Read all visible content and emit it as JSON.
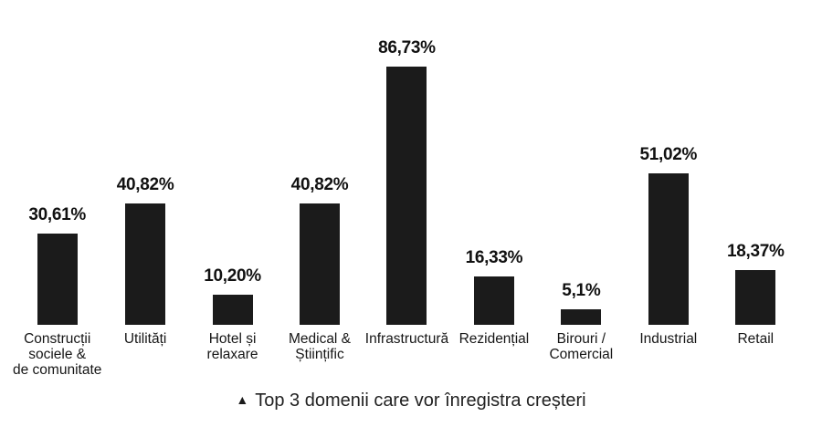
{
  "chart_data": {
    "type": "bar",
    "title": "",
    "xlabel": "",
    "ylabel": "",
    "ylim": [
      0,
      100
    ],
    "grid": false,
    "legend": "none",
    "bar_color": "#1b1b1b",
    "text_color": "#111111",
    "categories": [
      "Construcții sociale & de comunitate",
      "Utilități",
      "Hotel și relaxare",
      "Medical & Științific",
      "Infrastructură",
      "Rezidențial",
      "Birouri / Comercial",
      "Industrial",
      "Retail"
    ],
    "category_lines": [
      [
        "Construcții",
        "sociele &",
        "de comunitate"
      ],
      [
        "Utilități"
      ],
      [
        "Hotel și",
        "relaxare"
      ],
      [
        "Medical &",
        "Științific"
      ],
      [
        "Infrastructură"
      ],
      [
        "Rezidențial"
      ],
      [
        "Birouri /",
        "Comercial"
      ],
      [
        "Industrial"
      ],
      [
        "Retail"
      ]
    ],
    "values": [
      30.61,
      40.82,
      10.2,
      40.82,
      86.73,
      16.33,
      5.1,
      51.02,
      18.37
    ],
    "value_labels": [
      "30,61%",
      "40,82%",
      "10,20%",
      "40,82%",
      "86,73%",
      "16,33%",
      "5,1%",
      "51,02%",
      "18,37%"
    ]
  },
  "caption": {
    "marker": "▲",
    "text": "Top 3 domenii care vor înregistra creșteri"
  }
}
